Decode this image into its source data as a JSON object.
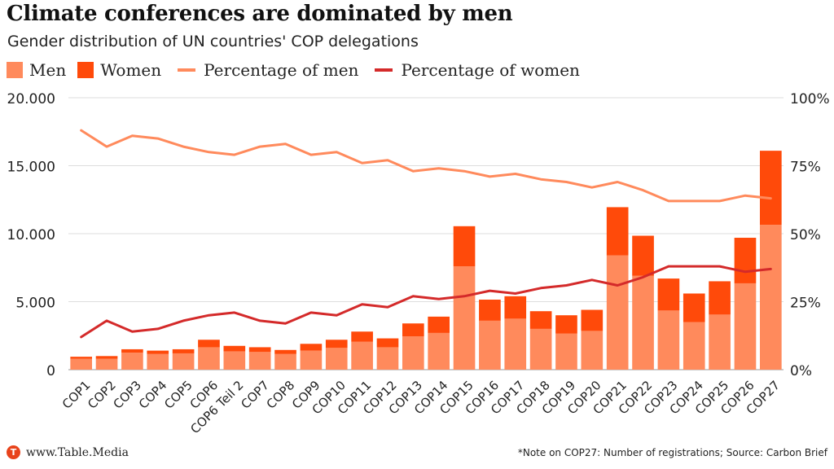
{
  "header": {
    "title": "Climate conferences are dominated by men",
    "subtitle": "Gender distribution of UN countries' COP delegations"
  },
  "legend": {
    "men": "Men",
    "women": "Women",
    "pct_men": "Percentage of men",
    "pct_women": "Percentage of women"
  },
  "footer": {
    "logo_letter": "T",
    "site": "www.Table.Media",
    "note": "*Note on COP27: Number of registrations; Source: Carbon Brief"
  },
  "colors": {
    "men": "#ff8a5c",
    "women": "#ff4a0a",
    "pct_men": "#ff8a5c",
    "pct_women": "#d42a2a",
    "grid": "#dddddd",
    "logo": "#e8431b"
  },
  "chart_data": {
    "type": "bar",
    "stacked": true,
    "categories": [
      "COP1",
      "COP2",
      "COP3",
      "COP4",
      "COP5",
      "COP6",
      "COP6 Teil 2",
      "COP7",
      "COP8",
      "COP9",
      "COP10",
      "COP11",
      "COP12",
      "COP13",
      "COP14",
      "COP15",
      "COP16",
      "COP17",
      "COP18",
      "COP19",
      "COP20",
      "COP21",
      "COP22",
      "COP23",
      "COP24",
      "COP25",
      "COP26",
      "COP27"
    ],
    "series": [
      {
        "name": "Men",
        "axis": "left",
        "values": [
          800,
          800,
          1250,
          1150,
          1200,
          1650,
          1350,
          1300,
          1150,
          1400,
          1600,
          2050,
          1650,
          2450,
          2700,
          7600,
          3600,
          3750,
          3000,
          2650,
          2850,
          8400,
          6900,
          4350,
          3500,
          4050,
          6350,
          10650
        ]
      },
      {
        "name": "Women",
        "axis": "left",
        "values": [
          150,
          200,
          250,
          250,
          300,
          550,
          400,
          350,
          300,
          500,
          600,
          750,
          650,
          950,
          1200,
          2950,
          1550,
          1650,
          1300,
          1350,
          1550,
          3550,
          2950,
          2350,
          2100,
          2450,
          3350,
          5450
        ]
      },
      {
        "name": "Percentage of men",
        "axis": "right",
        "type": "line",
        "values": [
          88,
          82,
          86,
          85,
          82,
          80,
          79,
          82,
          83,
          79,
          80,
          76,
          77,
          73,
          74,
          73,
          71,
          72,
          70,
          69,
          67,
          69,
          66,
          62,
          62,
          62,
          64,
          63
        ]
      },
      {
        "name": "Percentage of women",
        "axis": "right",
        "type": "line",
        "values": [
          12,
          18,
          14,
          15,
          18,
          20,
          21,
          18,
          17,
          21,
          20,
          24,
          23,
          27,
          26,
          27,
          29,
          28,
          30,
          31,
          33,
          31,
          34,
          38,
          38,
          38,
          36,
          37
        ]
      }
    ],
    "y_left": {
      "range": [
        0,
        20000
      ],
      "ticks": [
        0,
        5000,
        10000,
        15000,
        20000
      ],
      "tick_labels": [
        "0",
        "5.000",
        "10.000",
        "15.000",
        "20.000"
      ]
    },
    "y_right": {
      "range": [
        0,
        100
      ],
      "ticks": [
        0,
        25,
        50,
        75,
        100
      ],
      "tick_labels": [
        "0%",
        "25%",
        "50%",
        "75%",
        "100%"
      ]
    },
    "grid": true,
    "legend_position": "top-left"
  }
}
